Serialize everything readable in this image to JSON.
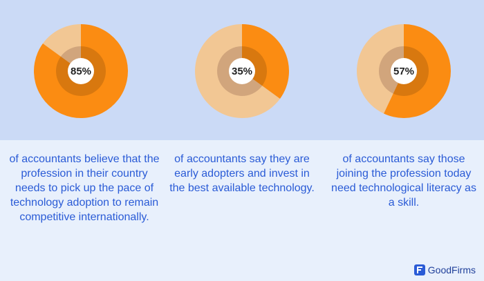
{
  "colors": {
    "top_band": "#cbdaf6",
    "bottom_band": "#e8f0fc",
    "highlight": "#fb8c12",
    "remainder": "#f2c794",
    "inner_highlight": "#d8780f",
    "inner_remainder": "#d1a57c",
    "text_blue": "#2a5bd6"
  },
  "chart_data": [
    {
      "type": "pie",
      "values": [
        85,
        15
      ],
      "label": "85%",
      "description": "of accountants believe that the profession in their country needs to pick up the pace of technology adoption to remain competitive internationally."
    },
    {
      "type": "pie",
      "values": [
        35,
        65
      ],
      "label": "35%",
      "description": "of accountants say they are early adopters and invest in the best available technology."
    },
    {
      "type": "pie",
      "values": [
        57,
        43
      ],
      "label": "57%",
      "description": "of accountants say those joining the profession today need technological literacy as a skill."
    }
  ],
  "brand": {
    "name": "GoodFirms",
    "icon": "goodfirms-logo-icon"
  }
}
